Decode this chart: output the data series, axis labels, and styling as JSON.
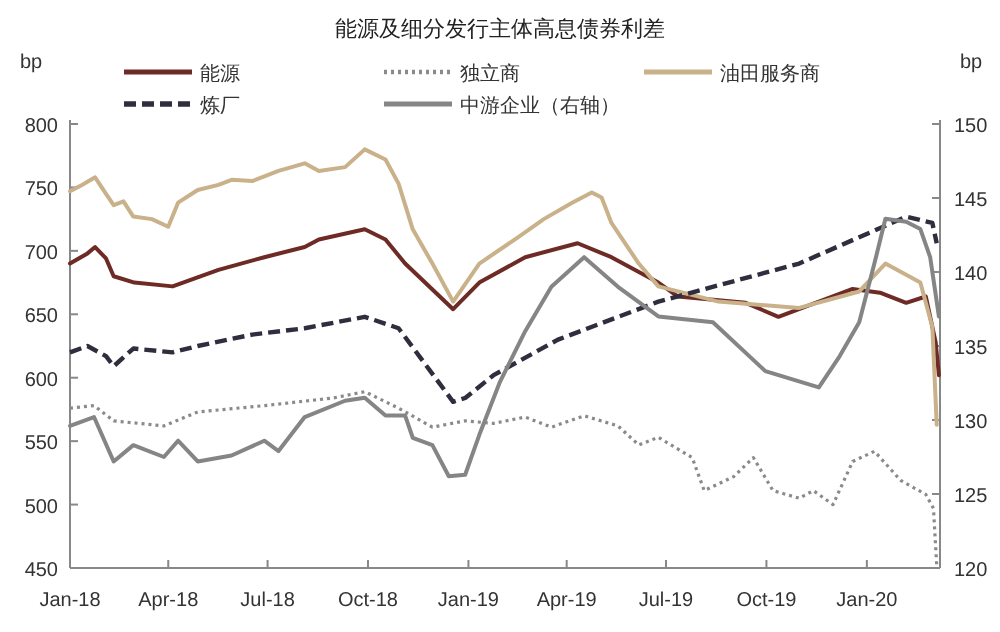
{
  "chart_data": {
    "type": "line",
    "title": "能源及细分发行主体高息债券利差",
    "ylabel": "bp",
    "y2label": "bp",
    "legend": "top",
    "grid": false,
    "xlim": [
      "2018-01-01",
      "2020-03-08"
    ],
    "xticks": [
      {
        "value": "2018-01-01",
        "label": "Jan-18"
      },
      {
        "value": "2018-04-01",
        "label": "Apr-18"
      },
      {
        "value": "2018-07-01",
        "label": "Jul-18"
      },
      {
        "value": "2018-10-01",
        "label": "Oct-18"
      },
      {
        "value": "2019-01-01",
        "label": "Jan-19"
      },
      {
        "value": "2019-04-01",
        "label": "Apr-19"
      },
      {
        "value": "2019-07-01",
        "label": "Jul-19"
      },
      {
        "value": "2019-10-01",
        "label": "Oct-19"
      },
      {
        "value": "2020-01-01",
        "label": "Jan-20"
      }
    ],
    "ylim": [
      450,
      800
    ],
    "yticks": [
      450,
      500,
      550,
      600,
      650,
      700,
      750,
      800
    ],
    "y2lim": [
      120,
      150
    ],
    "y2ticks": [
      120,
      125,
      130,
      135,
      140,
      145,
      150
    ],
    "series": [
      {
        "name": "能源",
        "color": "#6e2b26",
        "line_style": "solid",
        "x": [
          "2018-01-01",
          "2018-01-17",
          "2018-01-24",
          "2018-02-03",
          "2018-02-10",
          "2018-03-01",
          "2018-04-05",
          "2018-05-17",
          "2018-06-28",
          "2018-08-04",
          "2018-08-17",
          "2018-09-28",
          "2018-10-17",
          "2018-11-04",
          "2018-12-18",
          "2019-01-11",
          "2019-02-22",
          "2019-04-11",
          "2019-05-12",
          "2019-06-24",
          "2019-07-12",
          "2019-09-12",
          "2019-10-12",
          "2019-12-19",
          "2020-01-13",
          "2020-02-06",
          "2020-02-24",
          "2020-03-04",
          "2020-03-07"
        ],
        "values": [
          690,
          698,
          703,
          694,
          680,
          675,
          672,
          685,
          695,
          703,
          709,
          717,
          709,
          690,
          654,
          675,
          695,
          706,
          695,
          675,
          664,
          659,
          648,
          670,
          667,
          659,
          664,
          628,
          602
        ]
      },
      {
        "name": "独立商",
        "color": "#8a8a8a",
        "line_style": "dotted",
        "x": [
          "2018-01-01",
          "2018-01-23",
          "2018-02-10",
          "2018-03-28",
          "2018-04-28",
          "2018-06-28",
          "2018-08-30",
          "2018-09-28",
          "2018-10-29",
          "2018-11-29",
          "2018-12-29",
          "2019-01-24",
          "2019-02-22",
          "2019-03-18",
          "2019-04-17",
          "2019-05-18",
          "2019-06-06",
          "2019-06-24",
          "2019-07-25",
          "2019-08-05",
          "2019-09-01",
          "2019-09-19",
          "2019-10-07",
          "2019-10-31",
          "2019-11-13",
          "2019-12-01",
          "2019-12-19",
          "2020-01-08",
          "2020-02-01",
          "2020-02-24",
          "2020-03-02",
          "2020-03-05"
        ],
        "values": [
          576,
          578,
          566,
          562,
          573,
          578,
          584,
          589,
          576,
          561,
          566,
          564,
          569,
          561,
          570,
          562,
          547,
          553,
          537,
          511,
          522,
          537,
          511,
          505,
          511,
          500,
          534,
          542,
          519,
          508,
          497,
          452
        ]
      },
      {
        "name": "油田服务商",
        "color": "#c9b18a",
        "line_style": "solid",
        "x": [
          "2018-01-01",
          "2018-01-12",
          "2018-01-24",
          "2018-02-03",
          "2018-02-10",
          "2018-02-19",
          "2018-02-28",
          "2018-03-17",
          "2018-04-01",
          "2018-04-10",
          "2018-04-28",
          "2018-05-17",
          "2018-05-29",
          "2018-06-17",
          "2018-07-11",
          "2018-08-04",
          "2018-08-17",
          "2018-09-10",
          "2018-09-28",
          "2018-10-17",
          "2018-10-29",
          "2018-11-11",
          "2018-11-29",
          "2018-12-18",
          "2019-01-11",
          "2019-02-16",
          "2019-03-11",
          "2019-04-06",
          "2019-04-24",
          "2019-05-03",
          "2019-05-12",
          "2019-06-06",
          "2019-06-24",
          "2019-08-18",
          "2019-10-31",
          "2019-12-25",
          "2020-01-18",
          "2020-02-19",
          "2020-03-01",
          "2020-03-05"
        ],
        "values": [
          747,
          752,
          758,
          745,
          736,
          739,
          727,
          725,
          719,
          738,
          748,
          752,
          756,
          755,
          763,
          769,
          763,
          766,
          780,
          772,
          753,
          717,
          690,
          660,
          690,
          711,
          725,
          738,
          746,
          742,
          722,
          690,
          672,
          660,
          655,
          668,
          690,
          675,
          640,
          563
        ]
      },
      {
        "name": "炼厂",
        "color": "#2e2e3e",
        "line_style": "dashed",
        "x": [
          "2018-01-01",
          "2018-01-17",
          "2018-02-03",
          "2018-02-10",
          "2018-02-28",
          "2018-04-05",
          "2018-04-28",
          "2018-06-17",
          "2018-08-04",
          "2018-09-28",
          "2018-10-29",
          "2018-12-18",
          "2018-12-29",
          "2019-01-24",
          "2019-03-24",
          "2019-06-24",
          "2019-10-31",
          "2020-02-06",
          "2020-03-01",
          "2020-03-05"
        ],
        "values": [
          620,
          625,
          617,
          609,
          623,
          620,
          625,
          634,
          639,
          648,
          639,
          581,
          584,
          602,
          630,
          660,
          690,
          727,
          722,
          706
        ]
      },
      {
        "name": "中游企业（右轴）",
        "color": "#858585",
        "line_style": "solid",
        "axis": "y2",
        "x": [
          "2018-01-01",
          "2018-01-23",
          "2018-02-10",
          "2018-02-28",
          "2018-03-28",
          "2018-04-10",
          "2018-04-28",
          "2018-05-29",
          "2018-06-28",
          "2018-07-11",
          "2018-08-04",
          "2018-09-10",
          "2018-09-28",
          "2018-10-17",
          "2018-11-04",
          "2018-11-11",
          "2018-11-29",
          "2018-12-14",
          "2018-12-29",
          "2019-01-11",
          "2019-01-30",
          "2019-02-22",
          "2019-03-18",
          "2019-04-17",
          "2019-05-18",
          "2019-06-24",
          "2019-08-13",
          "2019-09-30",
          "2019-11-18",
          "2019-12-07",
          "2019-12-25",
          "2020-01-08",
          "2020-01-18",
          "2020-02-06",
          "2020-02-19",
          "2020-02-28",
          "2020-03-07"
        ],
        "values": [
          129.6,
          130.2,
          127.2,
          128.3,
          127.5,
          128.6,
          127.2,
          127.6,
          128.6,
          127.9,
          130.2,
          131.3,
          131.5,
          130.3,
          130.3,
          128.8,
          128.3,
          126.2,
          126.3,
          129.0,
          132.6,
          136,
          139,
          141,
          139,
          137,
          136.6,
          133.3,
          132.2,
          134.3,
          136.6,
          140.6,
          143.6,
          143.4,
          142.9,
          141.0,
          137.0
        ]
      }
    ]
  }
}
